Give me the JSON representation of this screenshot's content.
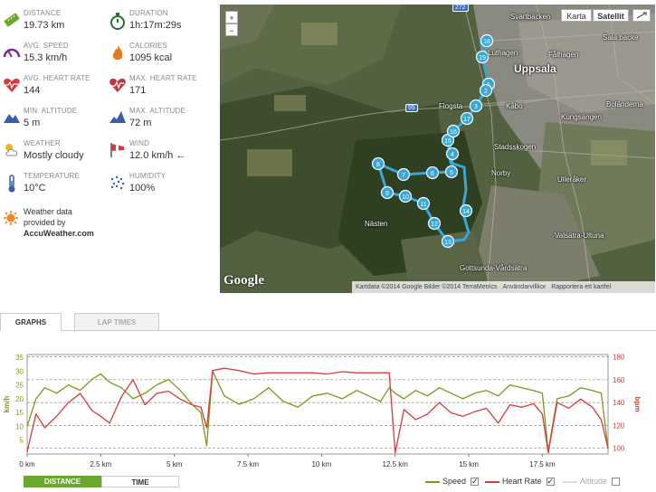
{
  "stats": [
    {
      "id": "distance",
      "label": "DISTANCE",
      "value": "19.73 km",
      "icon": "ruler-icon"
    },
    {
      "id": "duration",
      "label": "DURATION",
      "value": "1h:17m:29s",
      "icon": "stopwatch-icon"
    },
    {
      "id": "avg_speed",
      "label": "AVG. SPEED",
      "value": "15.3 km/h",
      "icon": "speedometer-icon"
    },
    {
      "id": "calories",
      "label": "CALORIES",
      "value": "1095 kcal",
      "icon": "flame-icon"
    },
    {
      "id": "avg_hr",
      "label": "AVG. HEART RATE",
      "value": "144",
      "icon": "heart-pulse-icon"
    },
    {
      "id": "max_hr",
      "label": "MAX. HEART RATE",
      "value": "171",
      "icon": "heart-max-icon"
    },
    {
      "id": "min_alt",
      "label": "MIN. ALTITUDE",
      "value": "5 m",
      "icon": "mountain-icon"
    },
    {
      "id": "max_alt",
      "label": "MAX. ALTITUDE",
      "value": "72 m",
      "icon": "mountain-max-icon"
    },
    {
      "id": "weather",
      "label": "WEATHER",
      "value": "Mostly cloudy",
      "icon": "cloud-sun-icon"
    },
    {
      "id": "wind",
      "label": "WIND",
      "value": "12.0 km/h ←",
      "icon": "windsock-icon"
    },
    {
      "id": "temperature",
      "label": "TEMPERATURE",
      "value": "10°C",
      "icon": "thermometer-icon"
    },
    {
      "id": "humidity",
      "label": "HUMIDITY",
      "value": "100%",
      "icon": "rain-drops-icon"
    }
  ],
  "weather_credit": {
    "line1": "Weather data",
    "line2": "provided by",
    "brand": "AccuWeather.com"
  },
  "map": {
    "zoom_in": "+",
    "zoom_out": "−",
    "type_karta": "Karta",
    "type_satellit": "Satellit",
    "logo": "Google",
    "footer_data": "Kartdata ©2014 Google Bilder ©2014 TerraMetrics",
    "footer_terms": "Användarvillkor",
    "footer_report": "Rapportera ett kartfel",
    "road_labels": [
      "272",
      "55"
    ],
    "places": [
      "Svartbäcken",
      "Sala backe",
      "Luthagen",
      "Fålhagen",
      "Uppsala",
      "Kåbo",
      "Boländerna",
      "Flogsta",
      "Kungsängen",
      "Stadsskogen",
      "Norby",
      "Ulleråker",
      "Nästen",
      "Valsätra-Ultuna",
      "Gottsunda-Vårdsätra"
    ],
    "km_markers": [
      "1",
      "2",
      "3",
      "4",
      "5",
      "6",
      "7",
      "8",
      "9",
      "10",
      "11",
      "12",
      "13",
      "14",
      "15",
      "16",
      "17",
      "18",
      "19"
    ]
  },
  "tabs": {
    "graphs": "GRAPHS",
    "laps": "LAP TIMES"
  },
  "controls": {
    "distance": "DISTANCE",
    "time": "TIME"
  },
  "legend": [
    {
      "name": "Speed",
      "color": "#7a9a1a",
      "checked": true
    },
    {
      "name": "Heart Rate",
      "color": "#d93a3a",
      "checked": true
    },
    {
      "name": "Altitude",
      "color": "#cccccc",
      "checked": false
    }
  ],
  "chart_data": {
    "type": "line",
    "x_unit": "km",
    "x_ticks": [
      "0 km",
      "2.5 km",
      "5 km",
      "7.5 km",
      "10 km",
      "12.5 km",
      "15 km",
      "17.5 km"
    ],
    "xlim": [
      0,
      19.73
    ],
    "y_left_label": "km/h",
    "y_left_ticks": [
      5,
      10,
      15,
      20,
      25,
      30,
      35
    ],
    "y_left_lim": [
      0,
      36
    ],
    "y_right_label": "bpm",
    "y_right_ticks": [
      100,
      120,
      140,
      160,
      180
    ],
    "y_right_lim": [
      95,
      182
    ],
    "grid": "dashed horizontal",
    "series": [
      {
        "name": "Speed",
        "axis": "left",
        "color": "#7a9a1a",
        "x": [
          0,
          0.3,
          0.6,
          1.0,
          1.4,
          1.8,
          2.2,
          2.5,
          2.8,
          3.2,
          3.6,
          4.0,
          4.4,
          4.8,
          5.2,
          5.6,
          5.9,
          6.1,
          6.3,
          6.7,
          7.2,
          7.7,
          8.2,
          8.7,
          9.2,
          9.7,
          10.2,
          10.7,
          11.2,
          11.6,
          12.0,
          12.3,
          12.5,
          12.8,
          13.2,
          13.6,
          14.0,
          14.4,
          14.8,
          15.2,
          15.6,
          16.0,
          16.4,
          16.8,
          17.2,
          17.5,
          17.7,
          18.0,
          18.4,
          18.8,
          19.2,
          19.5,
          19.73
        ],
        "y": [
          10,
          20,
          24,
          22,
          25,
          23,
          27,
          29,
          26,
          24,
          20,
          22,
          25,
          27,
          23,
          18,
          15,
          3,
          30,
          21,
          18,
          20,
          24,
          19,
          17,
          21,
          22,
          20,
          23,
          21,
          19,
          24,
          22,
          20,
          23,
          21,
          24,
          22,
          20,
          22,
          23,
          21,
          25,
          24,
          23,
          22,
          1,
          20,
          21,
          24,
          23,
          22,
          2
        ]
      },
      {
        "name": "Heart Rate",
        "axis": "right",
        "color": "#d93a3a",
        "x": [
          0,
          0.3,
          0.6,
          1.0,
          1.4,
          1.8,
          2.2,
          2.5,
          2.8,
          3.2,
          3.6,
          4.0,
          4.4,
          4.8,
          5.2,
          5.6,
          5.9,
          6.1,
          6.3,
          6.7,
          7.2,
          7.7,
          8.2,
          8.7,
          9.2,
          9.7,
          10.2,
          10.7,
          11.2,
          11.6,
          12.0,
          12.3,
          12.5,
          12.8,
          13.2,
          13.6,
          14.0,
          14.4,
          14.8,
          15.2,
          15.6,
          16.0,
          16.4,
          16.8,
          17.2,
          17.5,
          17.7,
          18.0,
          18.4,
          18.8,
          19.2,
          19.5,
          19.73
        ],
        "y": [
          97,
          130,
          118,
          128,
          140,
          148,
          133,
          128,
          122,
          145,
          160,
          138,
          148,
          150,
          143,
          138,
          136,
          118,
          168,
          170,
          168,
          165,
          166,
          166,
          166,
          166,
          165,
          167,
          166,
          166,
          166,
          166,
          96,
          134,
          125,
          130,
          140,
          131,
          128,
          132,
          135,
          122,
          138,
          136,
          139,
          130,
          96,
          140,
          135,
          143,
          136,
          125,
          100
        ]
      }
    ]
  }
}
